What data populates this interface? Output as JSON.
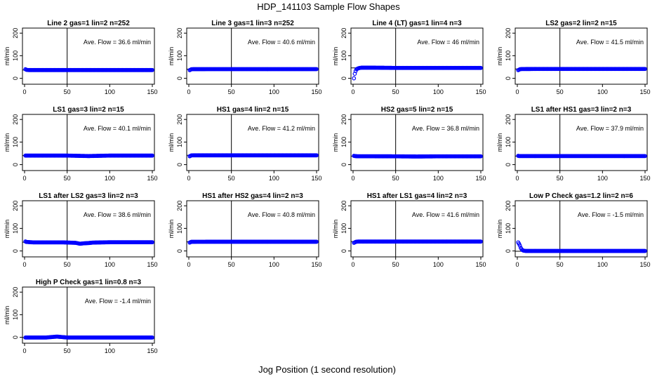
{
  "title": "HDP_141103  Sample Flow Shapes",
  "xlabel": "Jog Position (1 second resolution)",
  "colors": {
    "points": "#0000ff",
    "axes": "#000000"
  },
  "chart_data": [
    {
      "type": "scatter",
      "title": "Line 2 gas=1 lin=2 n=252",
      "ylabel": "ml/min",
      "annotation": "Ave. Flow =  36.6  ml/min",
      "xlim": [
        0,
        150
      ],
      "ylim": [
        -20,
        210
      ],
      "xticks": [
        "0",
        "50",
        "100",
        "150"
      ],
      "yticks": [
        "0",
        "100",
        "200"
      ],
      "vline": 50,
      "hline": 36.6,
      "series": [
        {
          "points": [
            [
              1,
              40
            ],
            [
              2,
              38
            ],
            [
              3,
              37
            ],
            [
              5,
              36.5
            ],
            [
              25,
              36.6
            ],
            [
              50,
              36.6
            ],
            [
              75,
              36.6
            ],
            [
              100,
              36.6
            ],
            [
              125,
              36.6
            ],
            [
              150,
              36.6
            ]
          ]
        }
      ]
    },
    {
      "type": "scatter",
      "title": "Line 3 gas=1 lin=3 n=252",
      "ylabel": "ml/min",
      "annotation": "Ave. Flow =  40.6  ml/min",
      "xlim": [
        0,
        150
      ],
      "ylim": [
        -20,
        210
      ],
      "xticks": [
        "0",
        "50",
        "100",
        "150"
      ],
      "yticks": [
        "0",
        "100",
        "200"
      ],
      "vline": 50,
      "hline": 40.6,
      "series": [
        {
          "points": [
            [
              1,
              36
            ],
            [
              2,
              38
            ],
            [
              3,
              40
            ],
            [
              5,
              40.5
            ],
            [
              25,
              40.6
            ],
            [
              50,
              40.6
            ],
            [
              75,
              40.6
            ],
            [
              100,
              40.6
            ],
            [
              125,
              40.6
            ],
            [
              150,
              40.6
            ]
          ]
        }
      ]
    },
    {
      "type": "scatter",
      "title": "Line 4 (LT) gas=1 lin=4 n=3",
      "ylabel": "ml/min",
      "annotation": "Ave. Flow =  46  ml/min",
      "xlim": [
        0,
        150
      ],
      "ylim": [
        -20,
        210
      ],
      "xticks": [
        "0",
        "50",
        "100",
        "150"
      ],
      "yticks": [
        "0",
        "100",
        "200"
      ],
      "vline": 50,
      "hline": 46,
      "series": [
        {
          "points": [
            [
              1,
              0
            ],
            [
              2,
              20
            ],
            [
              3,
              32
            ],
            [
              4,
              40
            ],
            [
              6,
              44
            ],
            [
              8,
              46
            ],
            [
              10,
              47
            ],
            [
              25,
              47
            ],
            [
              50,
              46
            ],
            [
              75,
              46
            ],
            [
              100,
              46
            ],
            [
              125,
              46
            ],
            [
              150,
              46
            ]
          ]
        }
      ]
    },
    {
      "type": "scatter",
      "title": "LS2 gas=2 lin=2 n=15",
      "ylabel": "ml/min",
      "annotation": "Ave. Flow =  41.5  ml/min",
      "xlim": [
        0,
        150
      ],
      "ylim": [
        -20,
        210
      ],
      "xticks": [
        "0",
        "50",
        "100",
        "150"
      ],
      "yticks": [
        "0",
        "100",
        "200"
      ],
      "vline": 50,
      "hline": 41.5,
      "series": [
        {
          "points": [
            [
              1,
              36
            ],
            [
              2,
              38
            ],
            [
              3,
              40
            ],
            [
              5,
              41
            ],
            [
              25,
              41.5
            ],
            [
              50,
              41.5
            ],
            [
              75,
              41.5
            ],
            [
              100,
              41.5
            ],
            [
              125,
              41.5
            ],
            [
              150,
              41.5
            ]
          ]
        }
      ]
    },
    {
      "type": "scatter",
      "title": "LS1 gas=3 lin=2 n=15",
      "ylabel": "ml/min",
      "annotation": "Ave. Flow =  40.1  ml/min",
      "xlim": [
        0,
        150
      ],
      "ylim": [
        -20,
        210
      ],
      "xticks": [
        "0",
        "50",
        "100",
        "150"
      ],
      "yticks": [
        "0",
        "100",
        "200"
      ],
      "vline": 50,
      "hline": 40.1,
      "series": [
        {
          "points": [
            [
              1,
              40
            ],
            [
              2,
              40
            ],
            [
              25,
              40.1
            ],
            [
              50,
              40.1
            ],
            [
              75,
              38
            ],
            [
              100,
              40.1
            ],
            [
              125,
              40.1
            ],
            [
              150,
              40.1
            ]
          ]
        }
      ]
    },
    {
      "type": "scatter",
      "title": "HS1 gas=4 lin=2 n=15",
      "ylabel": "ml/min",
      "annotation": "Ave. Flow =  41.2  ml/min",
      "xlim": [
        0,
        150
      ],
      "ylim": [
        -20,
        210
      ],
      "xticks": [
        "0",
        "50",
        "100",
        "150"
      ],
      "yticks": [
        "0",
        "100",
        "200"
      ],
      "vline": 50,
      "hline": 41.2,
      "series": [
        {
          "points": [
            [
              1,
              37
            ],
            [
              2,
              39
            ],
            [
              3,
              41
            ],
            [
              5,
              41.2
            ],
            [
              25,
              41.2
            ],
            [
              50,
              41.2
            ],
            [
              75,
              41.2
            ],
            [
              100,
              41.2
            ],
            [
              125,
              41.2
            ],
            [
              150,
              41.2
            ]
          ]
        }
      ]
    },
    {
      "type": "scatter",
      "title": "HS2 gas=5 lin=2 n=15",
      "ylabel": "ml/min",
      "annotation": "Ave. Flow =  36.8  ml/min",
      "xlim": [
        0,
        150
      ],
      "ylim": [
        -20,
        210
      ],
      "xticks": [
        "0",
        "50",
        "100",
        "150"
      ],
      "yticks": [
        "0",
        "100",
        "200"
      ],
      "vline": 50,
      "hline": 36.8,
      "series": [
        {
          "points": [
            [
              1,
              39
            ],
            [
              2,
              38
            ],
            [
              5,
              37
            ],
            [
              25,
              37
            ],
            [
              50,
              36.8
            ],
            [
              75,
              36
            ],
            [
              100,
              36.8
            ],
            [
              125,
              36.8
            ],
            [
              150,
              36.8
            ]
          ]
        }
      ]
    },
    {
      "type": "scatter",
      "title": "LS1 after HS1 gas=3 lin=2 n=3",
      "ylabel": "ml/min",
      "annotation": "Ave. Flow =  37.9  ml/min",
      "xlim": [
        0,
        150
      ],
      "ylim": [
        -20,
        210
      ],
      "xticks": [
        "0",
        "50",
        "100",
        "150"
      ],
      "yticks": [
        "0",
        "100",
        "200"
      ],
      "vline": 50,
      "hline": 37.9,
      "series": [
        {
          "points": [
            [
              1,
              39
            ],
            [
              2,
              38
            ],
            [
              25,
              37.9
            ],
            [
              50,
              37.9
            ],
            [
              75,
              37.9
            ],
            [
              100,
              37.9
            ],
            [
              125,
              37.9
            ],
            [
              150,
              37.9
            ]
          ]
        }
      ]
    },
    {
      "type": "scatter",
      "title": "LS1 after LS2 gas=3 lin=2 n=3",
      "ylabel": "ml/min",
      "annotation": "Ave. Flow =  38.6  ml/min",
      "xlim": [
        0,
        150
      ],
      "ylim": [
        -20,
        210
      ],
      "xticks": [
        "0",
        "50",
        "100",
        "150"
      ],
      "yticks": [
        "0",
        "100",
        "200"
      ],
      "vline": 50,
      "hline": 38.6,
      "series": [
        {
          "points": [
            [
              1,
              42
            ],
            [
              2,
              40
            ],
            [
              10,
              38
            ],
            [
              25,
              38
            ],
            [
              45,
              38
            ],
            [
              60,
              36
            ],
            [
              65,
              32
            ],
            [
              70,
              34
            ],
            [
              75,
              35
            ],
            [
              80,
              37
            ],
            [
              100,
              38.6
            ],
            [
              125,
              38.6
            ],
            [
              150,
              38.6
            ]
          ]
        }
      ]
    },
    {
      "type": "scatter",
      "title": "HS1 after HS2 gas=4 lin=2 n=3",
      "ylabel": "ml/min",
      "annotation": "Ave. Flow =  40.8  ml/min",
      "xlim": [
        0,
        150
      ],
      "ylim": [
        -20,
        210
      ],
      "xticks": [
        "0",
        "50",
        "100",
        "150"
      ],
      "yticks": [
        "0",
        "100",
        "200"
      ],
      "vline": 50,
      "hline": 40.8,
      "series": [
        {
          "points": [
            [
              1,
              37
            ],
            [
              2,
              39
            ],
            [
              3,
              40.5
            ],
            [
              25,
              40.8
            ],
            [
              50,
              40.8
            ],
            [
              75,
              40.8
            ],
            [
              100,
              40.8
            ],
            [
              125,
              40.8
            ],
            [
              150,
              40.8
            ]
          ]
        }
      ]
    },
    {
      "type": "scatter",
      "title": "HS1 after LS1 gas=4 lin=2 n=3",
      "ylabel": "ml/min",
      "annotation": "Ave. Flow =  41.6  ml/min",
      "xlim": [
        0,
        150
      ],
      "ylim": [
        -20,
        210
      ],
      "xticks": [
        "0",
        "50",
        "100",
        "150"
      ],
      "yticks": [
        "0",
        "100",
        "200"
      ],
      "vline": 50,
      "hline": 41.6,
      "series": [
        {
          "points": [
            [
              1,
              36
            ],
            [
              2,
              38
            ],
            [
              3,
              40
            ],
            [
              5,
              41.5
            ],
            [
              25,
              41.6
            ],
            [
              50,
              41.6
            ],
            [
              75,
              41.6
            ],
            [
              100,
              41.6
            ],
            [
              125,
              41.6
            ],
            [
              150,
              41.6
            ]
          ]
        }
      ]
    },
    {
      "type": "scatter",
      "title": "Low P Check gas=1.2 lin=2 n=6",
      "ylabel": "ml/min",
      "annotation": "Ave. Flow =  -1.5  ml/min",
      "xlim": [
        0,
        150
      ],
      "ylim": [
        -20,
        210
      ],
      "xticks": [
        "0",
        "50",
        "100",
        "150"
      ],
      "yticks": [
        "0",
        "100",
        "200"
      ],
      "vline": 50,
      "hline": -1.5,
      "series": [
        {
          "points": [
            [
              1,
              38
            ],
            [
              2,
              32
            ],
            [
              3,
              24
            ],
            [
              4,
              14
            ],
            [
              5,
              8
            ],
            [
              6,
              4
            ],
            [
              7,
              2
            ],
            [
              8,
              1
            ],
            [
              10,
              0
            ],
            [
              25,
              0
            ],
            [
              50,
              0
            ],
            [
              75,
              0
            ],
            [
              100,
              0
            ],
            [
              125,
              0
            ],
            [
              150,
              0
            ]
          ]
        }
      ]
    },
    {
      "type": "scatter",
      "title": "High P Check gas=1 lin=0.8 n=3",
      "ylabel": "ml/min",
      "annotation": "Ave. Flow =  -1.4  ml/min",
      "xlim": [
        0,
        150
      ],
      "ylim": [
        -20,
        210
      ],
      "xticks": [
        "0",
        "50",
        "100",
        "150"
      ],
      "yticks": [
        "0",
        "100",
        "200"
      ],
      "vline": 50,
      "hline": -1.4,
      "series": [
        {
          "points": [
            [
              1,
              -1
            ],
            [
              25,
              -1
            ],
            [
              38,
              3
            ],
            [
              50,
              -1
            ],
            [
              75,
              -1
            ],
            [
              100,
              -1
            ],
            [
              125,
              -1
            ],
            [
              150,
              -1
            ]
          ]
        }
      ]
    }
  ]
}
